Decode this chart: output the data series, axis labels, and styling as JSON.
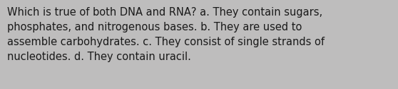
{
  "text": "Which is true of both DNA and RNA? a. They contain sugars,\nphosphates, and nitrogenous bases. b. They are used to\nassemble carbohydrates. c. They consist of single strands of\nnucleotides. d. They contain uracil.",
  "background_color": "#bebdbd",
  "text_color": "#1a1a1a",
  "font_size": 10.5,
  "figwidth": 5.58,
  "figheight": 1.26,
  "dpi": 100
}
